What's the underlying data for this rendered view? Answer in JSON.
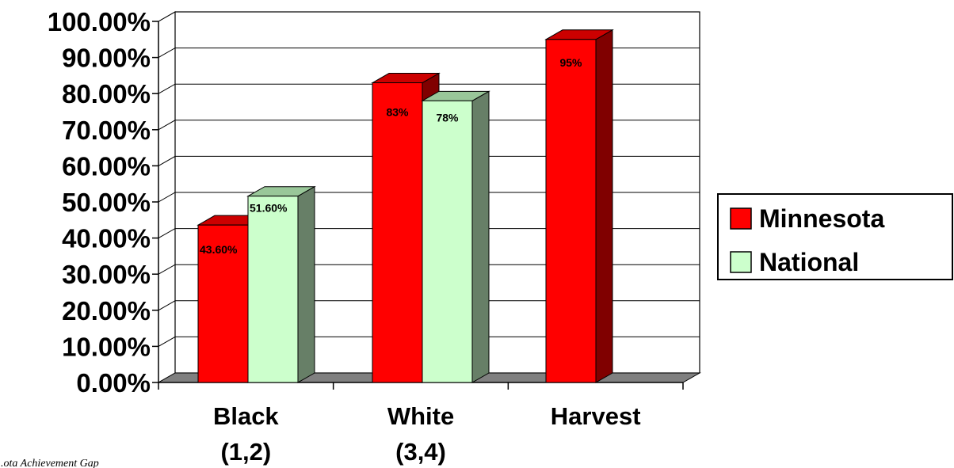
{
  "chart_data": {
    "type": "bar",
    "categories": [
      "Black\n(1,2)",
      "White\n(3,4)",
      "Harvest"
    ],
    "series": [
      {
        "name": "Minnesota",
        "values": [
          43.6,
          83,
          95
        ],
        "labels": [
          "43.60%",
          "83%",
          "95%"
        ]
      },
      {
        "name": "National",
        "values": [
          51.6,
          78,
          null
        ],
        "labels": [
          "51.60%",
          "78%",
          ""
        ]
      }
    ],
    "ylim": [
      0,
      100
    ],
    "yticks": [
      "0.00%",
      "10.00%",
      "20.00%",
      "30.00%",
      "40.00%",
      "50.00%",
      "60.00%",
      "70.00%",
      "80.00%",
      "90.00%",
      "100.00%"
    ],
    "grid": true,
    "legend": "right",
    "three_d": true
  },
  "colors": {
    "minnesota_front": "#ff0000",
    "minnesota_top": "#cc0000",
    "minnesota_side": "#800000",
    "national_front": "#ccffcc",
    "national_top": "#99c799",
    "national_side": "#677f67",
    "floor": "#808080",
    "grid": "#000000"
  },
  "footer": "...ota Achievement Gap"
}
